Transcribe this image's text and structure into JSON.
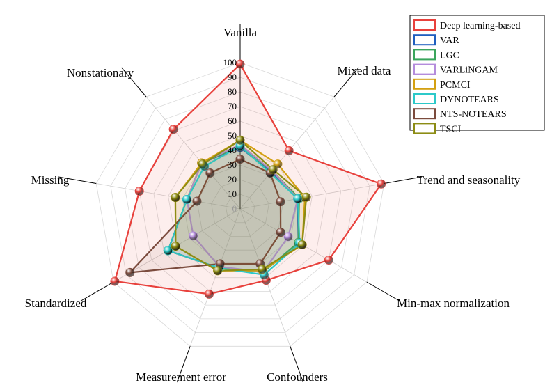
{
  "chart_data": {
    "type": "radar",
    "axes": [
      "Vanilla",
      "Mixed data",
      "Trend and seasonality",
      "Min-max normalization",
      "Confounders",
      "Measurement error",
      "Standardized",
      "Missing",
      "Nonstationary"
    ],
    "ticks": [
      "0",
      "10",
      "20",
      "30",
      "40",
      "50",
      "60",
      "70",
      "80",
      "90",
      "100"
    ],
    "range": [
      0,
      100
    ],
    "grid": true,
    "legend_position": "top-right",
    "series": [
      {
        "name": "Deep learning-based",
        "color": "#e8413c",
        "values": [
          99,
          52,
          98,
          70,
          52,
          62,
          99,
          70,
          71
        ]
      },
      {
        "name": "VAR",
        "color": "#1f5fbf",
        "values": [
          42,
          33,
          40,
          46,
          46,
          43,
          57,
          37,
          41
        ]
      },
      {
        "name": "LGC",
        "color": "#3aa55c",
        "values": [
          43,
          34,
          41,
          46,
          46,
          43,
          57,
          37,
          41
        ]
      },
      {
        "name": "VARLiNGAM",
        "color": "#b48cdc",
        "values": [
          44,
          34,
          40,
          38,
          46,
          42,
          37,
          37,
          41
        ]
      },
      {
        "name": "PCMCI",
        "color": "#d4a012",
        "values": [
          47,
          40,
          45,
          49,
          45,
          45,
          51,
          45,
          41
        ]
      },
      {
        "name": "DYNOTEARS",
        "color": "#2cc9c9",
        "values": [
          43,
          32,
          40,
          47,
          48,
          43,
          57,
          37,
          38
        ]
      },
      {
        "name": "NTS-NOTEARS",
        "color": "#7b4b3d",
        "values": [
          34,
          32,
          28,
          32,
          40,
          40,
          87,
          30,
          32
        ]
      },
      {
        "name": "TSCI",
        "color": "#8c8c14",
        "values": [
          47,
          35,
          46,
          49,
          44,
          45,
          51,
          45,
          40
        ]
      }
    ]
  }
}
